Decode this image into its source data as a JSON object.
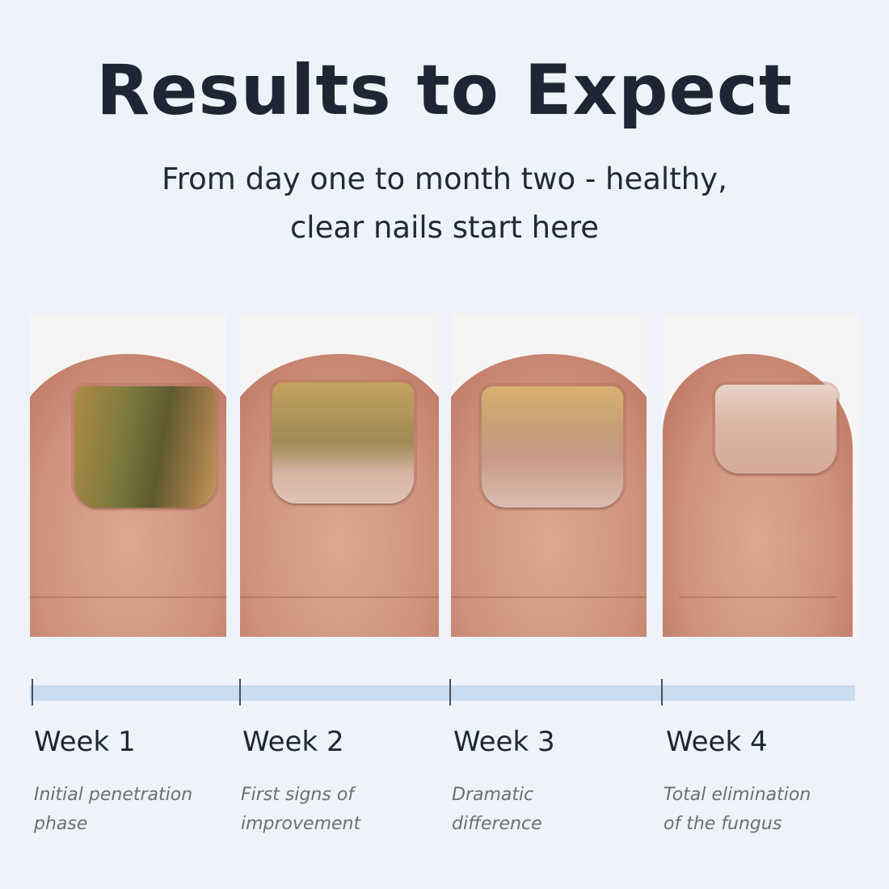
{
  "header": {
    "title": "Results to Expect",
    "subtitle_line1": "From day one to month two - healthy,",
    "subtitle_line2": "clear nails start here"
  },
  "stages": [
    {
      "label": "Week 1",
      "description_line1": "Initial penetration",
      "description_line2": "phase",
      "nail_color": "#8c7a3e"
    },
    {
      "label": "Week 2",
      "description_line1": "First signs of",
      "description_line2": "improvement",
      "nail_color": "#b9985c"
    },
    {
      "label": "Week 3",
      "description_line1": "Dramatic",
      "description_line2": "difference",
      "nail_color": "#c79f78"
    },
    {
      "label": "Week 4",
      "description_line1": "Total elimination",
      "description_line2": "of the fungus",
      "nail_color": "#ddb7a8"
    }
  ],
  "colors": {
    "background": "#eef2fb",
    "timeline": "#c9dcf0",
    "text": "#1f2633"
  }
}
